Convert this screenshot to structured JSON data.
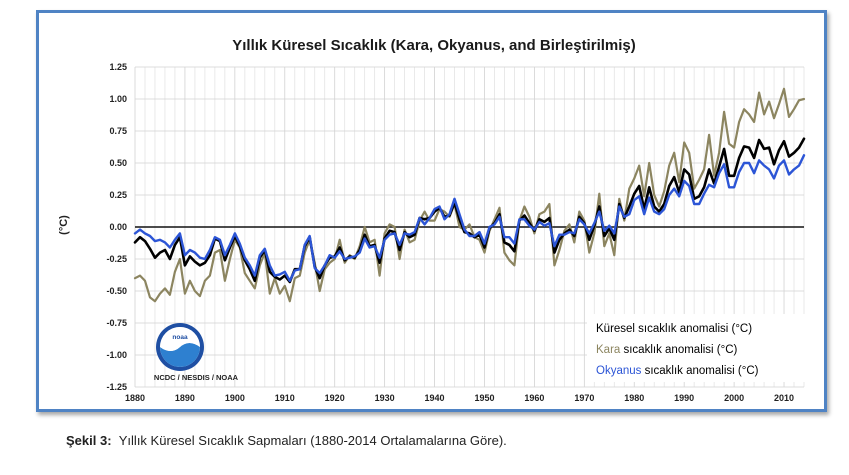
{
  "caption": {
    "label": "Şekil 3:",
    "text": "Yıllık Küresel Sıcaklık Sapmaları (1880-2014 Ortalamalarına Göre)."
  },
  "logo": {
    "text": "noaa",
    "agency": "NCDC / NESDIS / NOAA"
  },
  "colors": {
    "global": "#000000",
    "land": "#8c8560",
    "ocean": "#2c55d6",
    "frame": "#4f83c4"
  },
  "chart_data": {
    "type": "line",
    "title": "Yıllık Küresel Sıcaklık (Kara, Okyanus, and Birleştirilmiş)",
    "ylabel": "(°C)",
    "xlabel": "",
    "xlim": [
      1880,
      2014
    ],
    "ylim": [
      -1.25,
      1.25
    ],
    "grid": true,
    "legend_position": "bottom-right",
    "x_ticks": [
      "1880",
      "1890",
      "1900",
      "1910",
      "1920",
      "1930",
      "1940",
      "1950",
      "1960",
      "1970",
      "1980",
      "1990",
      "2000",
      "2010"
    ],
    "y_ticks": [
      "1.25",
      "1.00",
      "0.75",
      "0.50",
      "0.25",
      "0.00",
      "-0.25",
      "-0.50",
      "-0.75",
      "-1.00",
      "-1.25"
    ],
    "legend": [
      {
        "prefix": "",
        "colored": "",
        "suffix": "Küresel sıcaklık anomalisi (°C)"
      },
      {
        "prefix": "",
        "colored": "Kara",
        "suffix": " sıcaklık anomalisi (°C)"
      },
      {
        "prefix": "",
        "colored": "Okyanus",
        "suffix": " sıcaklık anomalisi (°C)"
      }
    ],
    "x": [
      1880,
      1881,
      1882,
      1883,
      1884,
      1885,
      1886,
      1887,
      1888,
      1889,
      1890,
      1891,
      1892,
      1893,
      1894,
      1895,
      1896,
      1897,
      1898,
      1899,
      1900,
      1901,
      1902,
      1903,
      1904,
      1905,
      1906,
      1907,
      1908,
      1909,
      1910,
      1911,
      1912,
      1913,
      1914,
      1915,
      1916,
      1917,
      1918,
      1919,
      1920,
      1921,
      1922,
      1923,
      1924,
      1925,
      1926,
      1927,
      1928,
      1929,
      1930,
      1931,
      1932,
      1933,
      1934,
      1935,
      1936,
      1937,
      1938,
      1939,
      1940,
      1941,
      1942,
      1943,
      1944,
      1945,
      1946,
      1947,
      1948,
      1949,
      1950,
      1951,
      1952,
      1953,
      1954,
      1955,
      1956,
      1957,
      1958,
      1959,
      1960,
      1961,
      1962,
      1963,
      1964,
      1965,
      1966,
      1967,
      1968,
      1969,
      1970,
      1971,
      1972,
      1973,
      1974,
      1975,
      1976,
      1977,
      1978,
      1979,
      1980,
      1981,
      1982,
      1983,
      1984,
      1985,
      1986,
      1987,
      1988,
      1989,
      1990,
      1991,
      1992,
      1993,
      1994,
      1995,
      1996,
      1997,
      1998,
      1999,
      2000,
      2001,
      2002,
      2003,
      2004,
      2005,
      2006,
      2007,
      2008,
      2009,
      2010,
      2011,
      2012,
      2013,
      2014
    ],
    "series": [
      {
        "name": "Küresel sıcaklık anomalisi (°C)",
        "color": "#000000",
        "values": [
          -0.12,
          -0.08,
          -0.11,
          -0.17,
          -0.24,
          -0.2,
          -0.18,
          -0.25,
          -0.14,
          -0.08,
          -0.3,
          -0.23,
          -0.27,
          -0.3,
          -0.28,
          -0.22,
          -0.09,
          -0.11,
          -0.26,
          -0.16,
          -0.07,
          -0.15,
          -0.26,
          -0.33,
          -0.42,
          -0.24,
          -0.18,
          -0.35,
          -0.39,
          -0.41,
          -0.38,
          -0.43,
          -0.33,
          -0.33,
          -0.15,
          -0.08,
          -0.31,
          -0.4,
          -0.3,
          -0.24,
          -0.23,
          -0.16,
          -0.26,
          -0.23,
          -0.24,
          -0.18,
          -0.06,
          -0.15,
          -0.14,
          -0.28,
          -0.09,
          -0.03,
          -0.04,
          -0.18,
          -0.04,
          -0.08,
          -0.06,
          0.07,
          0.06,
          0.07,
          0.12,
          0.15,
          0.08,
          0.09,
          0.19,
          0.06,
          -0.04,
          -0.05,
          -0.08,
          -0.06,
          -0.16,
          -0.01,
          0.03,
          0.1,
          -0.12,
          -0.14,
          -0.19,
          0.05,
          0.09,
          0.03,
          -0.03,
          0.06,
          0.04,
          0.07,
          -0.2,
          -0.1,
          -0.05,
          -0.02,
          -0.07,
          0.08,
          0.03,
          -0.1,
          0.01,
          0.16,
          -0.07,
          -0.01,
          -0.1,
          0.18,
          0.07,
          0.16,
          0.26,
          0.32,
          0.14,
          0.31,
          0.16,
          0.12,
          0.18,
          0.32,
          0.39,
          0.27,
          0.45,
          0.41,
          0.22,
          0.24,
          0.31,
          0.45,
          0.34,
          0.47,
          0.61,
          0.4,
          0.4,
          0.54,
          0.63,
          0.62,
          0.54,
          0.68,
          0.61,
          0.62,
          0.49,
          0.6,
          0.67,
          0.55,
          0.58,
          0.62,
          0.69
        ]
      },
      {
        "name": "Kara sıcaklık anomalisi (°C)",
        "color": "#8c8560",
        "values": [
          -0.4,
          -0.38,
          -0.42,
          -0.55,
          -0.58,
          -0.52,
          -0.48,
          -0.53,
          -0.35,
          -0.25,
          -0.52,
          -0.42,
          -0.5,
          -0.54,
          -0.42,
          -0.38,
          -0.2,
          -0.18,
          -0.42,
          -0.25,
          -0.1,
          -0.16,
          -0.36,
          -0.42,
          -0.48,
          -0.3,
          -0.2,
          -0.52,
          -0.4,
          -0.52,
          -0.46,
          -0.58,
          -0.4,
          -0.38,
          -0.2,
          -0.1,
          -0.28,
          -0.5,
          -0.33,
          -0.28,
          -0.25,
          -0.1,
          -0.28,
          -0.22,
          -0.25,
          -0.15,
          0.0,
          -0.12,
          -0.1,
          -0.38,
          -0.05,
          0.02,
          0.0,
          -0.25,
          -0.02,
          -0.12,
          -0.1,
          0.05,
          0.12,
          0.05,
          0.05,
          0.14,
          0.12,
          0.08,
          0.18,
          0.0,
          -0.02,
          0.02,
          -0.08,
          -0.1,
          -0.2,
          -0.03,
          0.06,
          0.15,
          -0.2,
          -0.26,
          -0.3,
          0.05,
          0.16,
          0.08,
          -0.05,
          0.1,
          0.12,
          0.18,
          -0.3,
          -0.18,
          -0.03,
          0.02,
          -0.12,
          0.12,
          0.05,
          -0.2,
          -0.05,
          0.26,
          -0.15,
          -0.05,
          -0.22,
          0.22,
          0.05,
          0.3,
          0.38,
          0.48,
          0.24,
          0.5,
          0.25,
          0.16,
          0.28,
          0.48,
          0.58,
          0.35,
          0.66,
          0.58,
          0.3,
          0.37,
          0.45,
          0.72,
          0.4,
          0.58,
          0.9,
          0.65,
          0.62,
          0.82,
          0.92,
          0.88,
          0.82,
          1.05,
          0.88,
          0.98,
          0.85,
          0.96,
          1.08,
          0.86,
          0.92,
          0.99,
          1.0
        ]
      },
      {
        "name": "Okyanus sıcaklık anomalisi (°C)",
        "color": "#2c55d6",
        "values": [
          -0.05,
          -0.02,
          -0.05,
          -0.07,
          -0.11,
          -0.1,
          -0.12,
          -0.16,
          -0.1,
          -0.05,
          -0.22,
          -0.18,
          -0.2,
          -0.24,
          -0.25,
          -0.18,
          -0.08,
          -0.1,
          -0.22,
          -0.14,
          -0.05,
          -0.13,
          -0.24,
          -0.3,
          -0.38,
          -0.22,
          -0.17,
          -0.3,
          -0.38,
          -0.37,
          -0.35,
          -0.42,
          -0.34,
          -0.33,
          -0.14,
          -0.07,
          -0.32,
          -0.36,
          -0.3,
          -0.22,
          -0.24,
          -0.19,
          -0.25,
          -0.24,
          -0.23,
          -0.2,
          -0.09,
          -0.16,
          -0.15,
          -0.24,
          -0.1,
          -0.06,
          -0.05,
          -0.14,
          -0.05,
          -0.06,
          -0.04,
          0.07,
          0.02,
          0.07,
          0.14,
          0.16,
          0.06,
          0.1,
          0.22,
          0.1,
          -0.02,
          -0.07,
          -0.07,
          -0.04,
          -0.13,
          0.0,
          0.02,
          0.08,
          -0.08,
          -0.08,
          -0.13,
          0.06,
          0.06,
          0.01,
          -0.02,
          0.04,
          0.01,
          0.03,
          -0.15,
          -0.06,
          -0.06,
          -0.04,
          -0.05,
          0.06,
          0.02,
          -0.05,
          0.03,
          0.12,
          -0.03,
          0.01,
          -0.05,
          0.16,
          0.08,
          0.1,
          0.21,
          0.24,
          0.1,
          0.23,
          0.12,
          0.1,
          0.14,
          0.25,
          0.3,
          0.24,
          0.36,
          0.32,
          0.18,
          0.18,
          0.26,
          0.33,
          0.31,
          0.42,
          0.49,
          0.31,
          0.31,
          0.43,
          0.5,
          0.5,
          0.42,
          0.52,
          0.48,
          0.45,
          0.38,
          0.48,
          0.52,
          0.41,
          0.45,
          0.48,
          0.56
        ]
      }
    ]
  }
}
